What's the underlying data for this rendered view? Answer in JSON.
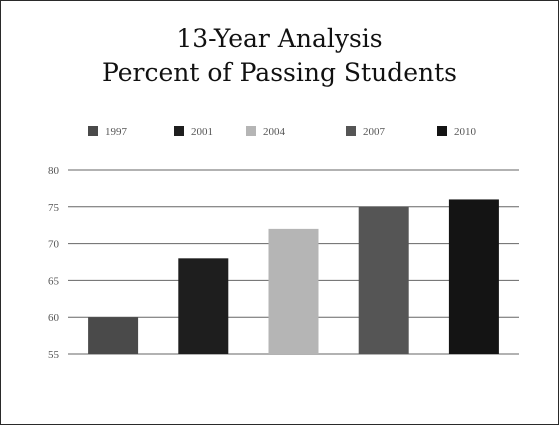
{
  "chart_data": {
    "type": "bar",
    "title_lines": [
      "13-Year Analysis",
      "Percent of Passing Students"
    ],
    "categories": [
      "1997",
      "2001",
      "2004",
      "2007",
      "2010"
    ],
    "values": [
      60,
      68,
      72,
      75,
      76
    ],
    "ylim": [
      55,
      80
    ],
    "yticks": [
      55,
      60,
      65,
      70,
      75,
      80
    ],
    "grid": true,
    "legend": "top",
    "series_colors": [
      "#4a4a4a",
      "#1e1e1e",
      "#b5b5b5",
      "#555555",
      "#141414"
    ]
  }
}
